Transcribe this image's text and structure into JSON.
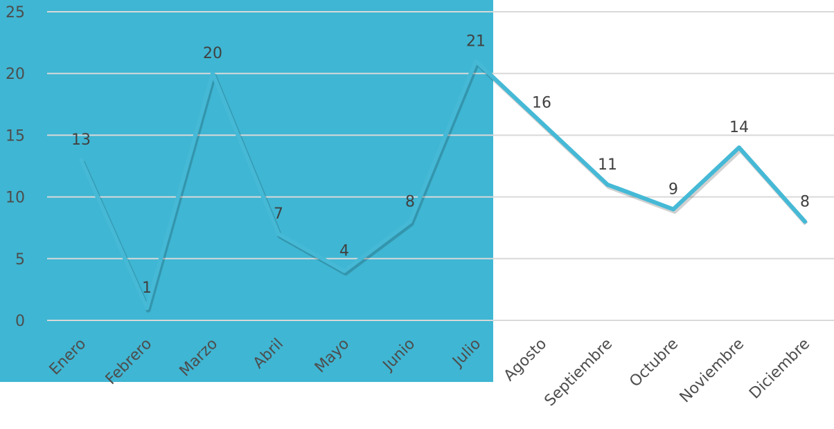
{
  "colors": {
    "highlight_panel": "#3fb6d3",
    "line": "#45b9d6",
    "gridline": "#d9d9d9",
    "text": "#4d4d4d"
  },
  "chart_data": {
    "type": "line",
    "title": "",
    "xlabel": "",
    "ylabel": "",
    "ylim": [
      0,
      25
    ],
    "yticks": [
      0,
      5,
      10,
      15,
      20,
      25
    ],
    "grid": true,
    "legend": "none",
    "categories": [
      "Enero",
      "Febrero",
      "Marzo",
      "Abril",
      "Mayo",
      "Junio",
      "Julio",
      "Agosto",
      "Septiembre",
      "Octubre",
      "Noviembre",
      "Diciembre"
    ],
    "series": [
      {
        "values": [
          13,
          1,
          20,
          7,
          4,
          8,
          21,
          16,
          11,
          9,
          14,
          8
        ]
      }
    ],
    "highlighted_range": [
      "Enero",
      "Julio"
    ]
  }
}
